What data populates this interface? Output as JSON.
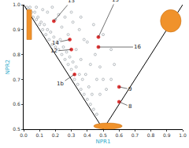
{
  "chart_data": {
    "type": "scatter",
    "x_label": "NPR1",
    "y_label": "NPR2",
    "xlim": [
      0,
      1
    ],
    "ylim": [
      0.5,
      1
    ],
    "xticks": [
      {
        "value": 0,
        "label": "0.0"
      },
      0.1,
      0.2,
      0.3,
      0.4,
      0.5,
      0.6,
      0.7,
      0.8,
      0.9,
      {
        "value": 1,
        "label": "1.0"
      }
    ],
    "yticks": [
      0.5,
      0.6,
      0.7,
      0.8,
      0.9,
      {
        "value": 1,
        "label": "1.0"
      }
    ],
    "grid": false,
    "series": [
      {
        "type": "scatter",
        "color": "#9aa0a6",
        "marker": "circle-open",
        "x": [
          0.02,
          0.03,
          0.05,
          0.04,
          0.06,
          0.08,
          0.07,
          0.1,
          0.09,
          0.12,
          0.11,
          0.13,
          0.14,
          0.15,
          0.16,
          0.17,
          0.18,
          0.19,
          0.2,
          0.21,
          0.22,
          0.23,
          0.24,
          0.25,
          0.26,
          0.27,
          0.28,
          0.29,
          0.3,
          0.31,
          0.32,
          0.33,
          0.34,
          0.35,
          0.36,
          0.37,
          0.38,
          0.4,
          0.42,
          0.44,
          0.46,
          0.41,
          0.43,
          0.39,
          0.36,
          0.33,
          0.28,
          0.24,
          0.2,
          0.15,
          0.12,
          0.26,
          0.31,
          0.35,
          0.4,
          0.45,
          0.48,
          0.5,
          0.52,
          0.46,
          0.42,
          0.38,
          0.3,
          0.36,
          0.44,
          0.5,
          0.55,
          0.57,
          0.55,
          0.48,
          0.18,
          0.08,
          0.22
        ],
        "values": [
          0.99,
          0.98,
          0.97,
          0.99,
          0.95,
          0.94,
          0.97,
          0.92,
          0.95,
          0.9,
          0.93,
          0.92,
          0.88,
          0.9,
          0.86,
          0.89,
          0.84,
          0.87,
          0.83,
          0.85,
          0.82,
          0.86,
          0.8,
          0.83,
          0.78,
          0.81,
          0.76,
          0.79,
          0.74,
          0.77,
          0.7,
          0.75,
          0.68,
          0.72,
          0.66,
          0.7,
          0.64,
          0.62,
          0.6,
          0.58,
          0.56,
          0.67,
          0.64,
          0.72,
          0.78,
          0.82,
          0.88,
          0.91,
          0.94,
          0.97,
          0.98,
          0.95,
          0.93,
          0.9,
          0.85,
          0.8,
          0.75,
          0.7,
          0.66,
          0.7,
          0.76,
          0.86,
          0.97,
          0.95,
          0.92,
          0.88,
          0.82,
          0.76,
          0.7,
          0.64,
          0.99,
          0.99,
          0.96
        ]
      },
      {
        "type": "line",
        "color": "#000000",
        "line_style": "solid",
        "x": [
          0,
          0.5,
          1
        ],
        "values": [
          1,
          0.5,
          1
        ]
      },
      {
        "type": "scatter",
        "color": "#e03030",
        "marker": "circle",
        "x": [
          0.19,
          0.47,
          0.29,
          0.3,
          0.32,
          0.47,
          0.6,
          0.6
        ],
        "values": [
          0.934,
          0.87,
          0.86,
          0.82,
          0.72,
          0.83,
          0.67,
          0.61
        ],
        "point_labels": [
          "13",
          "15",
          "14",
          "12",
          "1b",
          "16",
          "9",
          "8"
        ]
      }
    ]
  }
}
